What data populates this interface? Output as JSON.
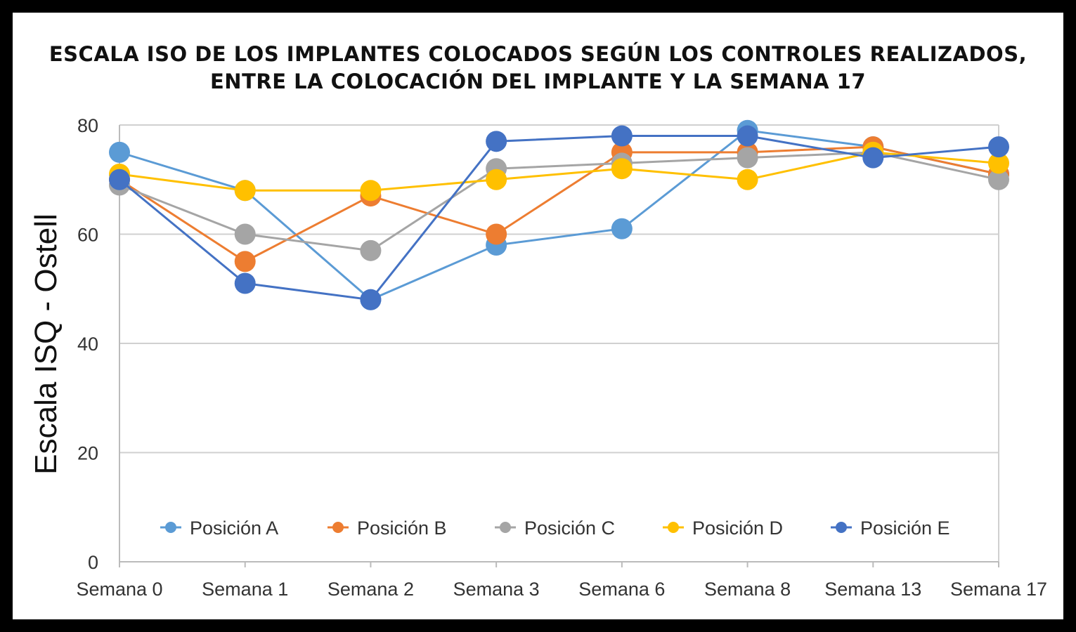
{
  "chart_data": {
    "type": "line",
    "title": [
      "ESCALA ISO DE LOS IMPLANTES COLOCADOS SEGÚN LOS CONTROLES REALIZADOS,",
      "ENTRE LA COLOCACIÓN DEL IMPLANTE Y LA SEMANA 17"
    ],
    "xlabel": "",
    "ylabel": "Escala  ISQ - Ostell",
    "ylim": [
      0,
      80
    ],
    "yticks": [
      0,
      20,
      40,
      60,
      80
    ],
    "grid": true,
    "legend": "bottom-inside",
    "categories": [
      "Semana 0",
      "Semana 1",
      "Semana 2",
      "Semana 3",
      "Semana 6",
      "Semana 8",
      "Semana 13",
      "Semana 17"
    ],
    "series": [
      {
        "name": "Posición A",
        "color": "#5b9bd5",
        "values": [
          75,
          68,
          48,
          58,
          61,
          79,
          76,
          71
        ]
      },
      {
        "name": "Posición B",
        "color": "#ed7d31",
        "values": [
          70,
          55,
          67,
          60,
          75,
          75,
          76,
          71
        ]
      },
      {
        "name": "Posición C",
        "color": "#a5a5a5",
        "values": [
          69,
          60,
          57,
          72,
          73,
          74,
          75,
          70
        ]
      },
      {
        "name": "Posición D",
        "color": "#ffc000",
        "values": [
          71,
          68,
          68,
          70,
          72,
          70,
          75,
          73
        ]
      },
      {
        "name": "Posición E",
        "color": "#4472c4",
        "values": [
          70,
          51,
          48,
          77,
          78,
          78,
          74,
          76
        ]
      }
    ]
  }
}
